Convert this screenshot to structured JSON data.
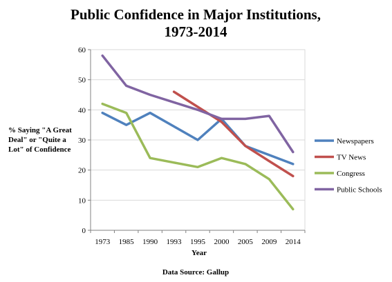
{
  "chart_data": {
    "type": "line",
    "title_lines": [
      "Public Confidence in Major Institutions,",
      "1973-2014"
    ],
    "xlabel": "Year",
    "ylabel_lines": [
      "% Saying \"A Great",
      "Deal\" or \"Quite a",
      "Lot\" of Confidence"
    ],
    "categories": [
      "1973",
      "1985",
      "1990",
      "1993",
      "1995",
      "2000",
      "2005",
      "2009",
      "2014"
    ],
    "ylim": [
      0,
      60
    ],
    "yticks": [
      "0",
      "10",
      "20",
      "30",
      "40",
      "50",
      "60"
    ],
    "grid": true,
    "legend_position": "right",
    "source": "Data Source:  Gallup",
    "series": [
      {
        "name": "Newspapers",
        "color": "#4F81BD",
        "values": [
          39,
          35,
          39,
          34.5,
          30,
          37,
          28,
          25,
          22
        ]
      },
      {
        "name": "TV News",
        "color": "#C0504D",
        "values": [
          null,
          null,
          null,
          46,
          41,
          36,
          28,
          23,
          18
        ]
      },
      {
        "name": "Congress",
        "color": "#9BBB59",
        "values": [
          42,
          39,
          24,
          22.5,
          21,
          24,
          22,
          17,
          7
        ]
      },
      {
        "name": "Public Schools",
        "color": "#8064A2",
        "values": [
          58,
          48,
          45,
          42.5,
          40,
          37,
          37,
          38,
          26
        ]
      }
    ]
  }
}
